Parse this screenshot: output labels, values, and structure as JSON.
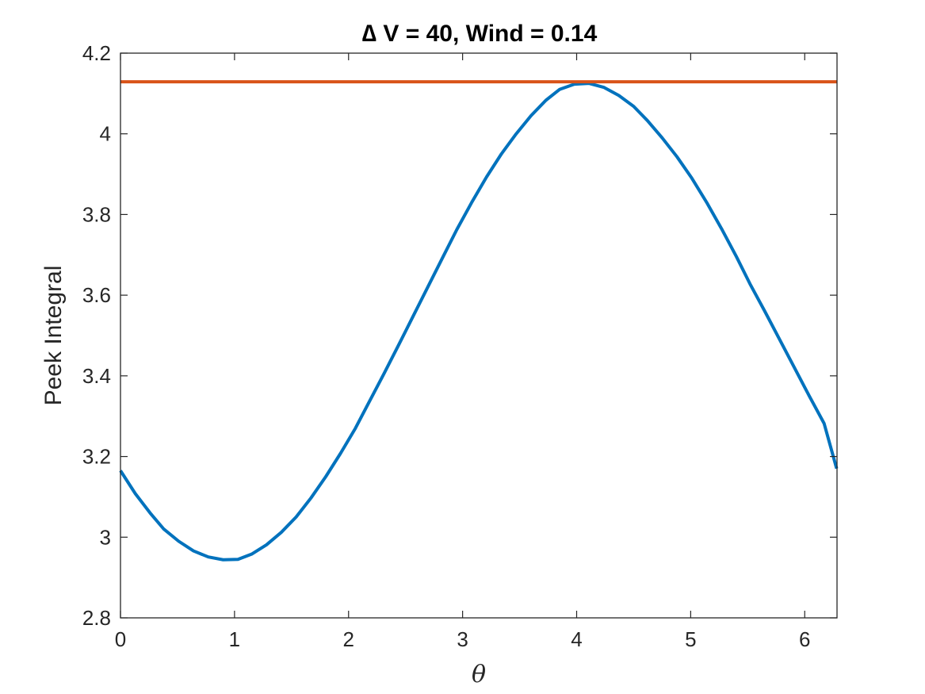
{
  "chart_data": {
    "type": "line",
    "title": "∆ V = 40, Wind = 0.14",
    "xlabel": "θ",
    "ylabel": "Peek Integral",
    "xlim": [
      0,
      6.2832
    ],
    "ylim": [
      2.8,
      4.2
    ],
    "xticks": [
      0,
      1,
      2,
      3,
      4,
      5,
      6
    ],
    "yticks": [
      2.8,
      3.0,
      3.2,
      3.4,
      3.6,
      3.8,
      4.0,
      4.2
    ],
    "xtick_labels": [
      "0",
      "1",
      "2",
      "3",
      "4",
      "5",
      "6"
    ],
    "ytick_labels": [
      "2.8",
      "3",
      "3.2",
      "3.4",
      "3.6",
      "3.8",
      "4",
      "4.2"
    ],
    "grid": false,
    "box": true,
    "series": [
      {
        "color": "#0072BD",
        "x": [
          0,
          0.13,
          0.26,
          0.38,
          0.51,
          0.64,
          0.77,
          0.9,
          1.03,
          1.15,
          1.28,
          1.41,
          1.54,
          1.67,
          1.8,
          1.93,
          2.06,
          2.18,
          2.31,
          2.44,
          2.57,
          2.7,
          2.83,
          2.95,
          3.08,
          3.21,
          3.34,
          3.47,
          3.6,
          3.73,
          3.85,
          3.98,
          4.11,
          4.24,
          4.37,
          4.5,
          4.62,
          4.75,
          4.88,
          5.01,
          5.14,
          5.27,
          5.4,
          5.52,
          5.65,
          5.78,
          5.91,
          6.04,
          6.17,
          6.28
        ],
        "y": [
          3.165,
          3.108,
          3.06,
          3.02,
          2.99,
          2.966,
          2.951,
          2.944,
          2.945,
          2.958,
          2.981,
          3.012,
          3.05,
          3.097,
          3.15,
          3.208,
          3.27,
          3.335,
          3.405,
          3.477,
          3.55,
          3.623,
          3.696,
          3.763,
          3.83,
          3.893,
          3.95,
          4.0,
          4.045,
          4.083,
          4.11,
          4.123,
          4.125,
          4.115,
          4.095,
          4.068,
          4.033,
          3.99,
          3.943,
          3.89,
          3.83,
          3.765,
          3.696,
          3.628,
          3.56,
          3.49,
          3.42,
          3.35,
          3.282,
          3.17
        ]
      },
      {
        "color": "#D95319",
        "x": [
          0,
          6.2832
        ],
        "y": [
          4.129,
          4.129
        ]
      }
    ]
  }
}
